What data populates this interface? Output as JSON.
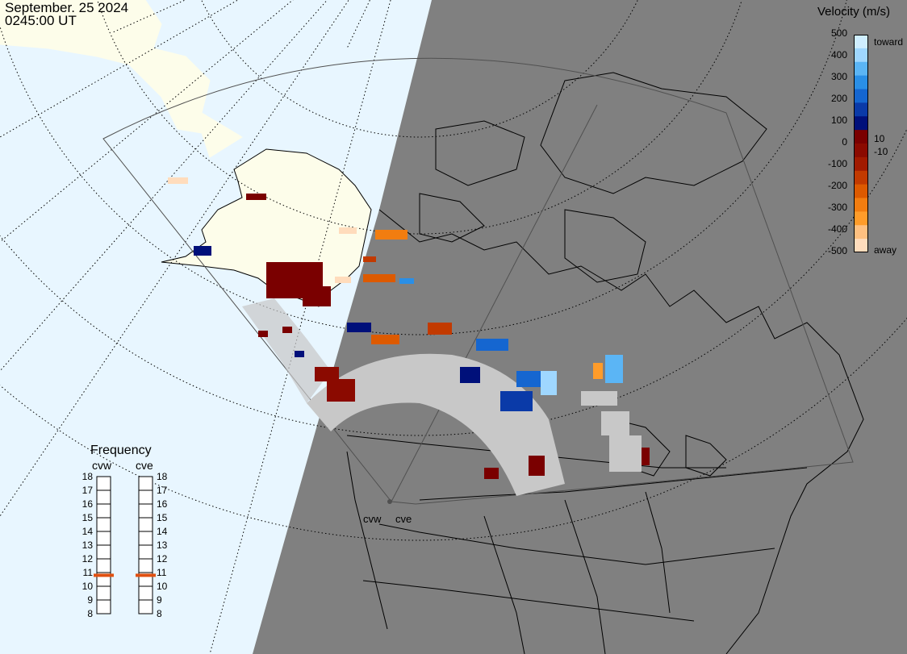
{
  "header": {
    "date": "September. 25 2024",
    "time": "0245:00 UT"
  },
  "colorbar": {
    "title": "Velocity (m/s)",
    "ticks": [
      "500",
      "400",
      "300",
      "200",
      "100",
      "0",
      "-100",
      "-200",
      "-300",
      "-400",
      "-500"
    ],
    "toward_label": "toward",
    "away_label": "away",
    "pos_small": "10",
    "neg_small": "-10",
    "colors": [
      "#cfeeff",
      "#9fd7ff",
      "#5bb5f5",
      "#2a8fe6",
      "#1566d0",
      "#0a3aa8",
      "#00107a",
      "#7a0000",
      "#8b0a00",
      "#a11a00",
      "#c23a00",
      "#dd5a00",
      "#f27d10",
      "#ff9c2a",
      "#ffc080",
      "#ffdcbc"
    ]
  },
  "frequency": {
    "title": "Frequency",
    "radars": [
      "cvw",
      "cve"
    ],
    "scale": [
      "18",
      "17",
      "16",
      "15",
      "14",
      "13",
      "12",
      "11",
      "10",
      "9",
      "8"
    ],
    "cvw_mhz": 10.8,
    "cve_mhz": 10.8,
    "marker_color": "#e05010"
  },
  "map": {
    "ocean_color": "#e8f6ff",
    "land_day_color": "#fdfdea",
    "night_color": "#808080",
    "groundscatter_color": "#c8c8c8",
    "site_labels": [
      "cvw",
      "cve"
    ]
  }
}
